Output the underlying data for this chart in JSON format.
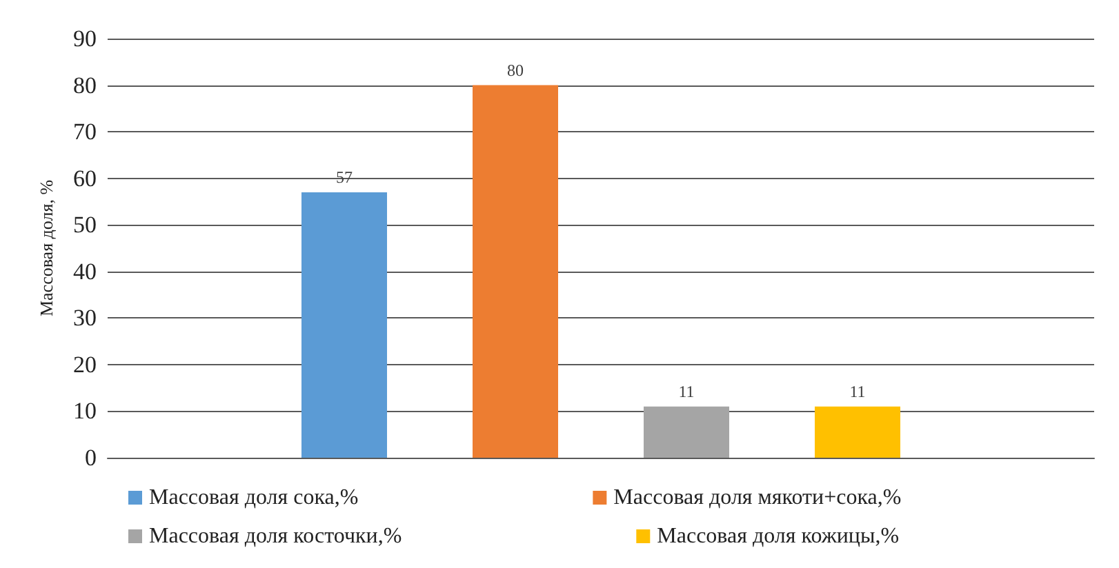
{
  "chart_data": {
    "type": "bar",
    "ylabel": "Массовая доля, %",
    "categories": [
      null
    ],
    "series": [
      {
        "name": "Массовая доля сока,%",
        "color": "#5b9bd5",
        "values": [
          57
        ]
      },
      {
        "name": "Массовая доля мякоти+сока,%",
        "color": "#ed7d31",
        "values": [
          80
        ]
      },
      {
        "name": "Массовая доля косточки,%",
        "color": "#a5a5a5",
        "values": [
          11
        ]
      },
      {
        "name": "Массовая доля кожицы,%",
        "color": "#ffc000",
        "values": [
          11
        ]
      }
    ],
    "ylim": [
      0,
      90
    ],
    "yticks": [
      0,
      10,
      20,
      30,
      40,
      50,
      60,
      70,
      80,
      90
    ],
    "grid": true,
    "legend": "bottom",
    "data_labels": true
  }
}
